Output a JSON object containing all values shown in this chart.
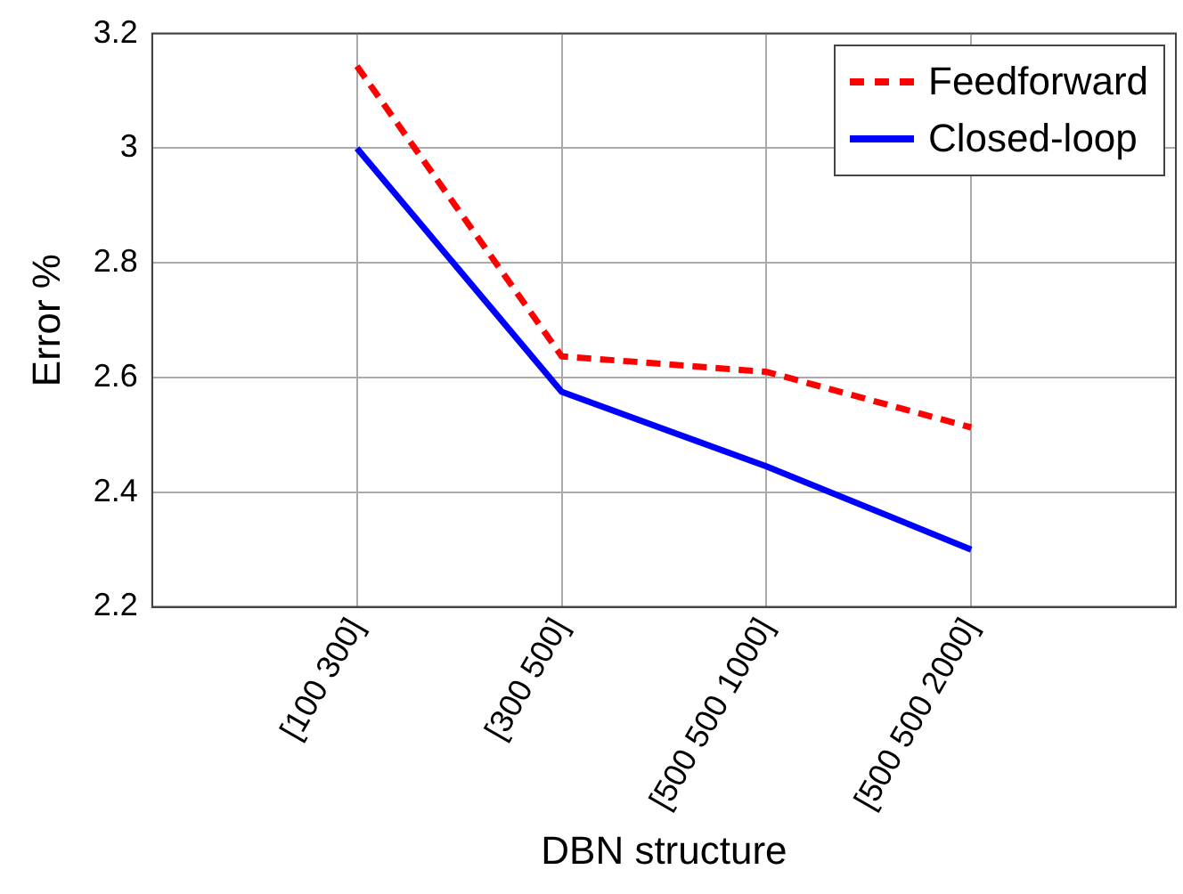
{
  "chart_data": {
    "type": "line",
    "xlabel": "DBN structure",
    "ylabel": "Error %",
    "categories": [
      "[100 300]",
      "[300 500]",
      "[500 500 1000]",
      "[500 500 2000]"
    ],
    "series": [
      {
        "name": "Feedforward",
        "color": "#ff0000",
        "line_style": "dashed",
        "values": [
          3.143,
          2.637,
          2.61,
          2.513
        ]
      },
      {
        "name": "Closed-loop",
        "color": "#0000ff",
        "line_style": "solid",
        "values": [
          3.0,
          2.575,
          2.445,
          2.3
        ]
      }
    ],
    "ylim": [
      2.2,
      3.2
    ],
    "yticks": [
      2.2,
      2.4,
      2.6,
      2.8,
      3,
      3.2
    ],
    "grid": true,
    "legend": "top right",
    "marker": "none"
  }
}
